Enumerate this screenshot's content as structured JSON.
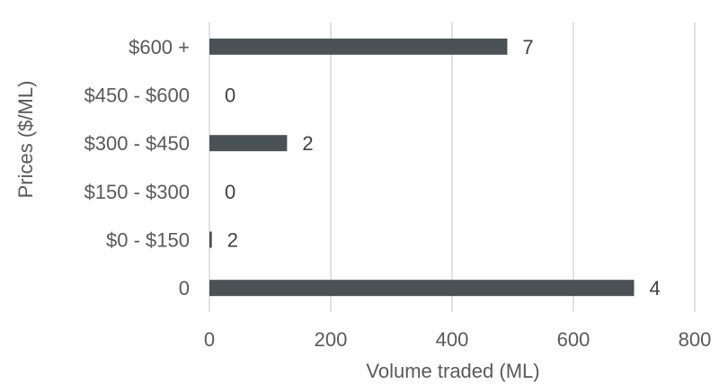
{
  "chart_data": {
    "type": "bar",
    "orientation": "horizontal",
    "categories": [
      "0",
      "$0 - $150",
      "$150 - $300",
      "$300 - $450",
      "$450 - $600",
      "$600 +"
    ],
    "series": [
      {
        "values": [
          700,
          4,
          0,
          128,
          0,
          491
        ],
        "data_labels": [
          "4",
          "2",
          "0",
          "2",
          "0",
          "7"
        ]
      }
    ],
    "xlabel": "Volume traded (ML)",
    "ylabel": "Prices ($/ML)",
    "xlim": [
      0,
      800
    ],
    "xticks": [
      0,
      200,
      400,
      600,
      800
    ],
    "xtick_labels": [
      "0",
      "200",
      "400",
      "600",
      "800"
    ],
    "grid": true,
    "bar_color": "#4a5256"
  }
}
